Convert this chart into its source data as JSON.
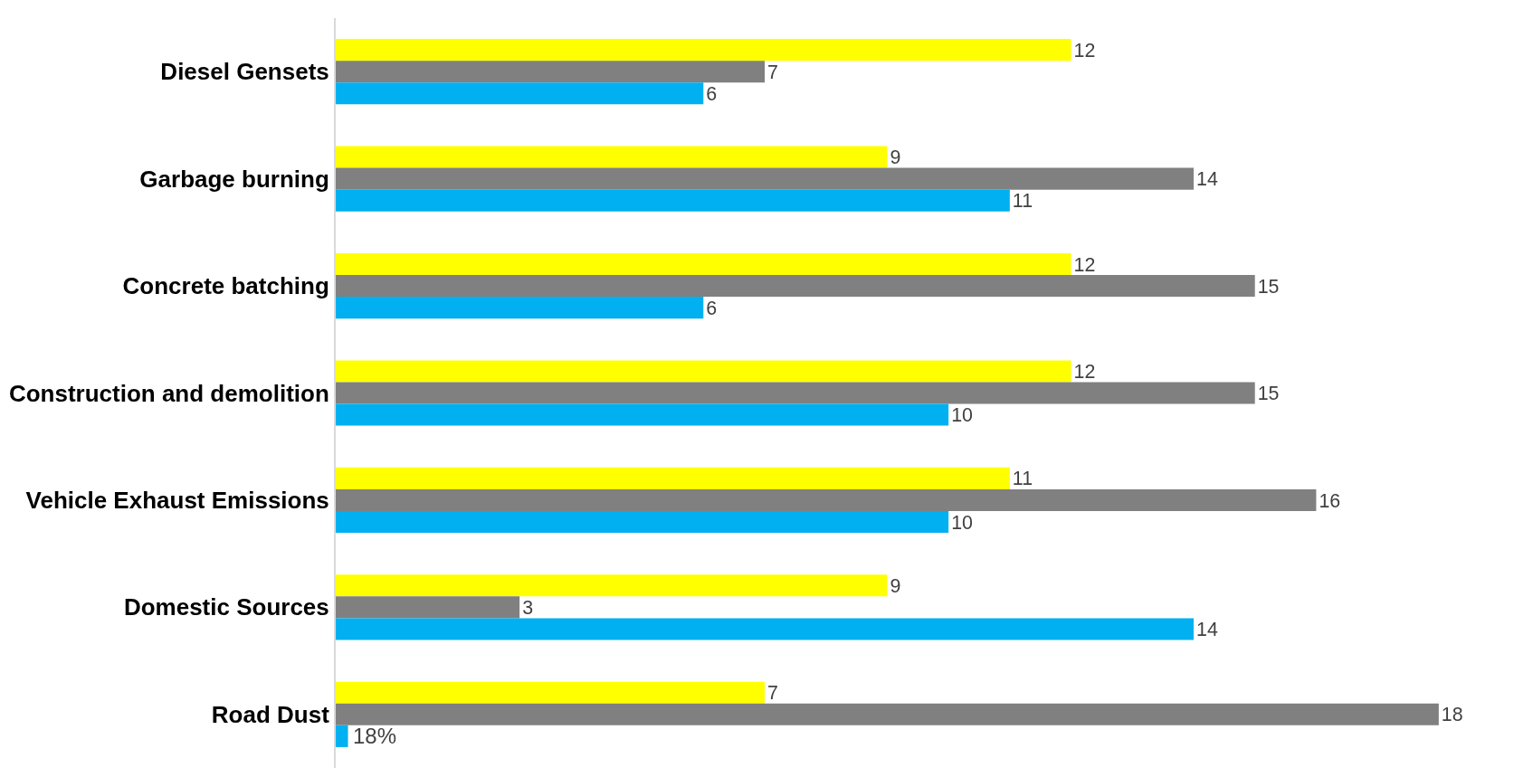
{
  "chart_data": {
    "type": "bar",
    "orientation": "horizontal",
    "categories": [
      "Diesel Gensets",
      "Garbage burning",
      "Concrete batching",
      "Construction and demolition",
      "Vehicle Exhaust Emissions",
      "Domestic Sources",
      "Road Dust"
    ],
    "series": [
      {
        "color": "#ffff00",
        "values": [
          12,
          9,
          12,
          12,
          11,
          9,
          7
        ],
        "value_labels": [
          "12",
          "9",
          "12",
          "12",
          "11",
          "9",
          "7"
        ]
      },
      {
        "color": "#808080",
        "values": [
          7,
          14,
          15,
          15,
          16,
          3,
          18
        ],
        "value_labels": [
          "7",
          "14",
          "15",
          "15",
          "16",
          "3",
          "18"
        ]
      },
      {
        "color": "#00b0f0",
        "values": [
          6,
          11,
          6,
          10,
          10,
          14,
          0.2
        ],
        "value_labels": [
          "6",
          "11",
          "6",
          "10",
          "10",
          "14",
          null
        ]
      }
    ],
    "annotations": [
      "18%"
    ],
    "tick_labels": "y"
  }
}
